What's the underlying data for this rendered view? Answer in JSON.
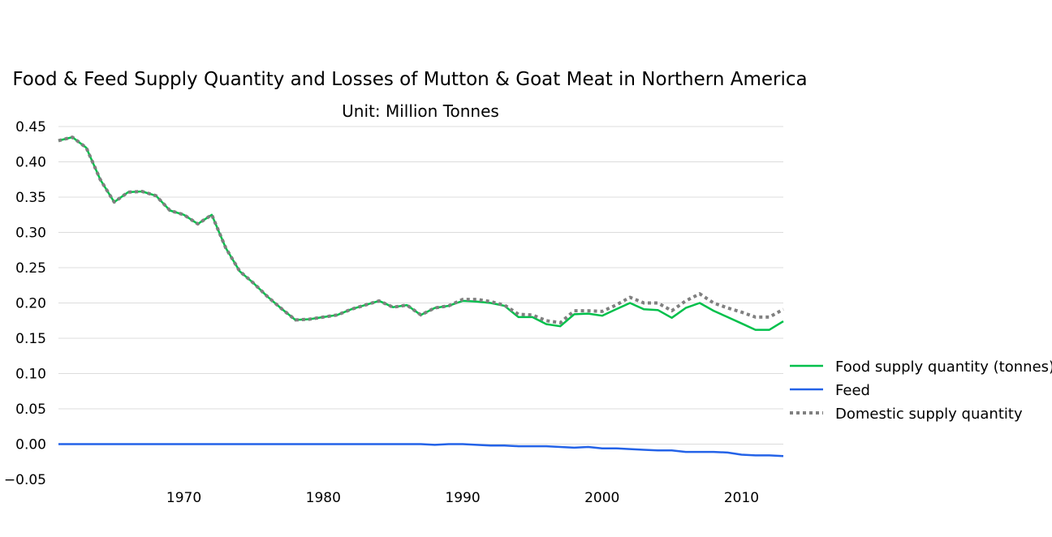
{
  "chart_data": {
    "type": "line",
    "title": "Food & Feed Supply Quantity and Losses of Mutton & Goat Meat in Northern America",
    "subtitle": "Unit: Million Tonnes",
    "xlabel": "",
    "ylabel": "",
    "xlim": [
      1961,
      2013
    ],
    "ylim": [
      -0.05,
      0.45
    ],
    "yticks": [
      "0.45",
      "0.40",
      "0.35",
      "0.30",
      "0.25",
      "0.20",
      "0.15",
      "0.10",
      "0.05",
      "0.00",
      "−0.05"
    ],
    "xticks": [
      "1970",
      "1980",
      "1990",
      "2000",
      "2010"
    ],
    "grid": true,
    "legend_position": "right",
    "x": [
      1961,
      1962,
      1963,
      1964,
      1965,
      1966,
      1967,
      1968,
      1969,
      1970,
      1971,
      1972,
      1973,
      1974,
      1975,
      1976,
      1977,
      1978,
      1979,
      1980,
      1981,
      1982,
      1983,
      1984,
      1985,
      1986,
      1987,
      1988,
      1989,
      1990,
      1991,
      1992,
      1993,
      1994,
      1995,
      1996,
      1997,
      1998,
      1999,
      2000,
      2001,
      2002,
      2003,
      2004,
      2005,
      2006,
      2007,
      2008,
      2009,
      2010,
      2011,
      2012,
      2013
    ],
    "series": [
      {
        "name": "Food supply quantity (tonnes)",
        "color": "#00c04b",
        "style": "solid",
        "values": [
          0.43,
          0.435,
          0.42,
          0.375,
          0.343,
          0.357,
          0.358,
          0.352,
          0.331,
          0.325,
          0.312,
          0.325,
          0.278,
          0.245,
          0.228,
          0.209,
          0.192,
          0.176,
          0.177,
          0.18,
          0.183,
          0.191,
          0.197,
          0.203,
          0.194,
          0.197,
          0.183,
          0.193,
          0.196,
          0.203,
          0.202,
          0.2,
          0.196,
          0.18,
          0.18,
          0.17,
          0.167,
          0.184,
          0.185,
          0.182,
          0.191,
          0.2,
          0.191,
          0.19,
          0.179,
          0.193,
          0.2,
          0.189,
          0.18,
          0.171,
          0.162,
          0.162,
          0.174
        ]
      },
      {
        "name": "Feed",
        "color": "#2463e8",
        "style": "solid",
        "values": [
          0.0,
          0.0,
          0.0,
          0.0,
          0.0,
          0.0,
          0.0,
          0.0,
          0.0,
          0.0,
          0.0,
          0.0,
          0.0,
          0.0,
          0.0,
          0.0,
          0.0,
          0.0,
          0.0,
          0.0,
          0.0,
          0.0,
          0.0,
          0.0,
          0.0,
          0.0,
          0.0,
          -0.001,
          0.0,
          0.0,
          -0.001,
          -0.002,
          -0.002,
          -0.003,
          -0.003,
          -0.003,
          -0.004,
          -0.005,
          -0.004,
          -0.006,
          -0.006,
          -0.007,
          -0.008,
          -0.009,
          -0.009,
          -0.011,
          -0.011,
          -0.011,
          -0.012,
          -0.015,
          -0.016,
          -0.016,
          -0.017
        ]
      },
      {
        "name": "Domestic supply quantity",
        "color": "#808080",
        "style": "dotted",
        "values": [
          0.43,
          0.435,
          0.42,
          0.375,
          0.343,
          0.357,
          0.358,
          0.352,
          0.331,
          0.325,
          0.312,
          0.325,
          0.278,
          0.245,
          0.228,
          0.209,
          0.192,
          0.176,
          0.177,
          0.18,
          0.183,
          0.191,
          0.197,
          0.203,
          0.194,
          0.197,
          0.183,
          0.193,
          0.196,
          0.205,
          0.205,
          0.202,
          0.197,
          0.184,
          0.183,
          0.175,
          0.172,
          0.189,
          0.189,
          0.188,
          0.197,
          0.208,
          0.2,
          0.2,
          0.189,
          0.203,
          0.213,
          0.2,
          0.193,
          0.187,
          0.18,
          0.18,
          0.191
        ]
      }
    ]
  }
}
